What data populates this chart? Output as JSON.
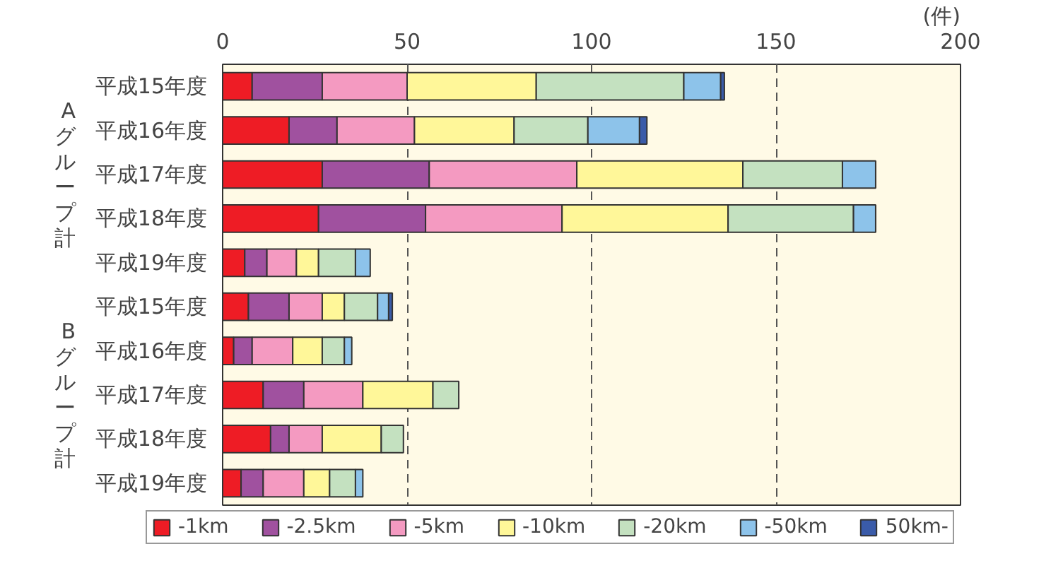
{
  "chart_data": {
    "type": "bar",
    "orientation": "horizontal",
    "stacked": true,
    "categories": [
      "平成15年度",
      "平成16年度",
      "平成17年度",
      "平成18年度",
      "平成19年度",
      "平成15年度",
      "平成16年度",
      "平成17年度",
      "平成18年度",
      "平成19年度"
    ],
    "series": [
      {
        "name": "-1km",
        "color": "#ee1c25",
        "values": [
          8,
          18,
          27,
          26,
          6,
          7,
          3,
          11,
          13,
          5
        ]
      },
      {
        "name": "-2.5km",
        "color": "#a0519f",
        "values": [
          19,
          13,
          29,
          29,
          6,
          11,
          5,
          11,
          5,
          6
        ]
      },
      {
        "name": "-5km",
        "color": "#f49ac1",
        "values": [
          23,
          21,
          40,
          37,
          8,
          9,
          11,
          16,
          9,
          11
        ]
      },
      {
        "name": "-10km",
        "color": "#fff799",
        "values": [
          35,
          27,
          45,
          45,
          6,
          6,
          8,
          19,
          16,
          7
        ]
      },
      {
        "name": "-20km",
        "color": "#c4e1c0",
        "values": [
          40,
          20,
          27,
          34,
          10,
          9,
          6,
          7,
          6,
          7
        ]
      },
      {
        "name": "-50km",
        "color": "#8dc3ea",
        "values": [
          10,
          14,
          9,
          6,
          4,
          3,
          2,
          null,
          null,
          2
        ]
      },
      {
        "name": "50km-",
        "color": "#3a5ba9",
        "values": [
          1,
          2,
          null,
          null,
          null,
          1,
          null,
          null,
          null,
          null
        ]
      }
    ],
    "xlim": [
      0,
      200
    ],
    "xticks": [
      0,
      50,
      100,
      150,
      200
    ],
    "xlabel": "(件)",
    "annotations": [
      "Aグループ計",
      "Bグループ計"
    ],
    "grid": "x",
    "legend": "bottom"
  }
}
